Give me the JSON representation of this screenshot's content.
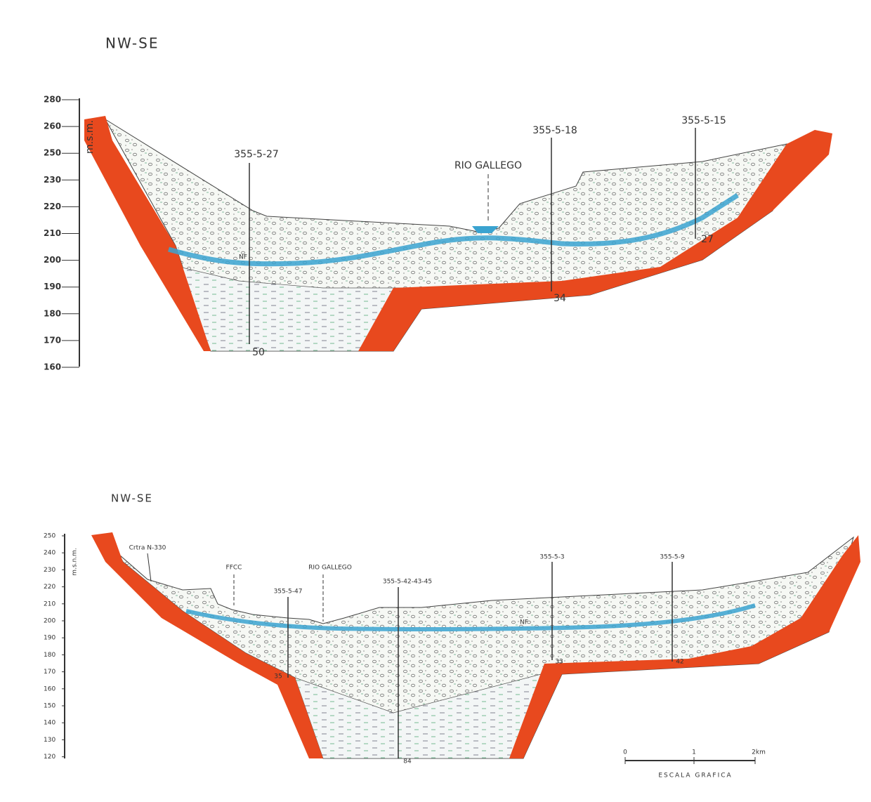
{
  "sections": [
    {
      "title": "NW-SE",
      "axis_label": "m.s.m.",
      "ticks": [
        280,
        260,
        250,
        230,
        220,
        210,
        200,
        190,
        180,
        170,
        160
      ],
      "river": "RIO GALLEGO",
      "water_table": "NF",
      "wells": [
        {
          "label": "355-5-27",
          "depth": 50
        },
        {
          "label": "355-5-18",
          "depth": 34
        },
        {
          "label": "355-5-15",
          "depth": 27
        }
      ]
    },
    {
      "title": "NW-SE",
      "axis_label": "m.s.n.m.",
      "ticks": [
        250,
        240,
        230,
        220,
        210,
        200,
        190,
        180,
        170,
        160,
        150,
        140,
        130,
        120
      ],
      "river": "RIO GALLEGO",
      "water_table": "NF",
      "landmarks": [
        "Crtra N-330",
        "FFCC"
      ],
      "wells": [
        {
          "label": "355-5-47",
          "depth": 35
        },
        {
          "label": "355-5-42-43-45",
          "depth": 84
        },
        {
          "label": "355-5-3",
          "depth": 33
        },
        {
          "label": "355-5-9",
          "depth": 42
        }
      ]
    }
  ],
  "scale": {
    "ticks": [
      0,
      1,
      "2km"
    ],
    "title": "ESCALA GRAFICA"
  }
}
